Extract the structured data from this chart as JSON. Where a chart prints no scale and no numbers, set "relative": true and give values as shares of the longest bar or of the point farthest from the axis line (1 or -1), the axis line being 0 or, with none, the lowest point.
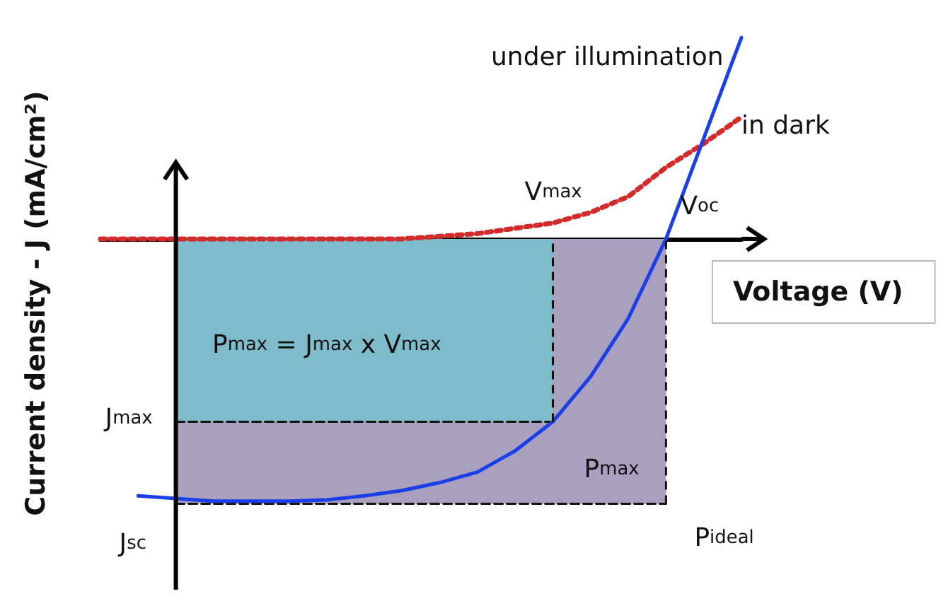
{
  "chart_data": {
    "type": "line",
    "relative": true,
    "xlabel": "Voltage (V)",
    "ylabel": "Current density - J (mA/cm²)",
    "legend": false,
    "grid": false,
    "marker": "none",
    "categories": [
      null,
      null,
      null,
      null,
      null,
      null,
      null,
      null,
      null,
      null,
      null,
      null,
      null,
      null,
      null,
      null,
      null,
      null
    ],
    "series": [
      {
        "type": "area",
        "color": "#a9a0c0",
        "line_style": "dashed",
        "values": [
          null,
          null,
          -1,
          -1,
          -1,
          -1,
          -1,
          -1,
          -1,
          -1,
          -1,
          -1,
          -1,
          -1,
          -1,
          -1,
          null,
          null
        ]
      },
      {
        "type": "area",
        "color": "#7fbccb",
        "line_style": "dashed",
        "values": [
          null,
          null,
          -0.69,
          -0.69,
          -0.69,
          -0.69,
          -0.69,
          -0.69,
          -0.69,
          -0.69,
          -0.69,
          -0.69,
          -0.69,
          null,
          null,
          null,
          null,
          null
        ]
      },
      {
        "name": "in dark",
        "color": "#d42a2a",
        "line_style": "dotted",
        "values": [
          0,
          0,
          0,
          0,
          0,
          0,
          0,
          0,
          0,
          0.01,
          0.02,
          0.04,
          0.06,
          0.1,
          0.16,
          0.27,
          0.36,
          0.46
        ]
      },
      {
        "name": "under illumination",
        "color": "#1a3ee8",
        "line_style": "solid",
        "values": [
          null,
          -0.97,
          -0.98,
          -0.99,
          -0.99,
          -0.99,
          -0.985,
          -0.97,
          -0.95,
          -0.92,
          -0.88,
          -0.8,
          -0.69,
          -0.52,
          -0.3,
          0,
          0.38,
          0.76
        ]
      }
    ],
    "annotations": [
      "P$_{max}$ = J$_{max}$ x V$_{max}$",
      {
        "text": "V$_{max}$",
        "y": 0
      },
      "V$_{oc}$",
      "J$_{max}$",
      {
        "text": "J$_{sc}$",
        "y": -0.98
      },
      "P$_{max}$",
      "P$_{ideal}$"
    ]
  }
}
